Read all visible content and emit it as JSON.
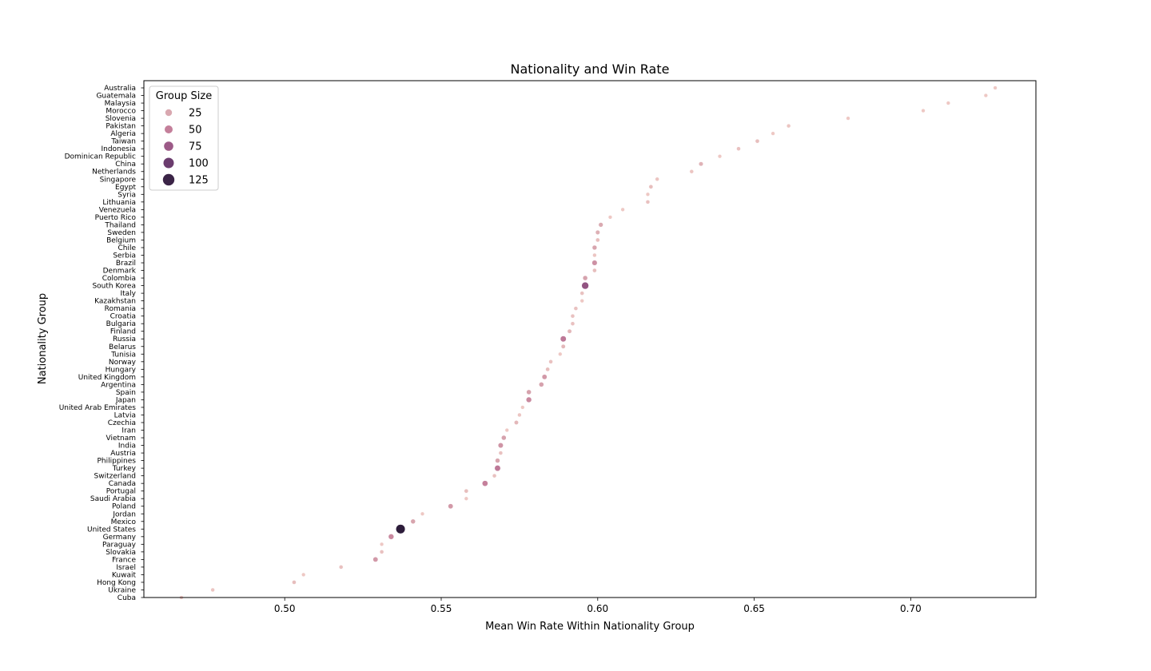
{
  "chart_data": {
    "type": "scatter",
    "title": "Nationality and Win Rate",
    "xlabel": "Mean Win Rate Within Nationality Group",
    "ylabel": "Nationality Group",
    "xlim": [
      0.455,
      0.74
    ],
    "x_ticks": [
      0.5,
      0.55,
      0.6,
      0.65,
      0.7
    ],
    "x_tick_labels": [
      "0.50",
      "0.55",
      "0.60",
      "0.65",
      "0.70"
    ],
    "grid": false,
    "legend": {
      "title": "Group Size",
      "placement": "top-left",
      "entries": [
        {
          "label": "25",
          "size": 25,
          "color": "#d9a8b0"
        },
        {
          "label": "50",
          "size": 50,
          "color": "#c47f9a"
        },
        {
          "label": "75",
          "size": 75,
          "color": "#9c5a87"
        },
        {
          "label": "100",
          "size": 100,
          "color": "#6b3c6e"
        },
        {
          "label": "125",
          "size": 125,
          "color": "#3b2447"
        }
      ]
    },
    "points": [
      {
        "name": "Australia",
        "x": 0.727,
        "size": 8
      },
      {
        "name": "Guatemala",
        "x": 0.724,
        "size": 8
      },
      {
        "name": "Malaysia",
        "x": 0.712,
        "size": 8
      },
      {
        "name": "Morocco",
        "x": 0.704,
        "size": 8
      },
      {
        "name": "Slovenia",
        "x": 0.68,
        "size": 8
      },
      {
        "name": "Pakistan",
        "x": 0.661,
        "size": 10
      },
      {
        "name": "Algeria",
        "x": 0.656,
        "size": 8
      },
      {
        "name": "Taiwan",
        "x": 0.651,
        "size": 14
      },
      {
        "name": "Indonesia",
        "x": 0.645,
        "size": 12
      },
      {
        "name": "Dominican Republic",
        "x": 0.639,
        "size": 8
      },
      {
        "name": "China",
        "x": 0.633,
        "size": 20
      },
      {
        "name": "Netherlands",
        "x": 0.63,
        "size": 10
      },
      {
        "name": "Singapore",
        "x": 0.619,
        "size": 10
      },
      {
        "name": "Egypt",
        "x": 0.617,
        "size": 14
      },
      {
        "name": "Syria",
        "x": 0.616,
        "size": 8
      },
      {
        "name": "Lithuania",
        "x": 0.616,
        "size": 12
      },
      {
        "name": "Venezuela",
        "x": 0.608,
        "size": 8
      },
      {
        "name": "Puerto Rico",
        "x": 0.604,
        "size": 8
      },
      {
        "name": "Thailand",
        "x": 0.601,
        "size": 25
      },
      {
        "name": "Sweden",
        "x": 0.6,
        "size": 22
      },
      {
        "name": "Belgium",
        "x": 0.6,
        "size": 14
      },
      {
        "name": "Chile",
        "x": 0.599,
        "size": 28
      },
      {
        "name": "Serbia",
        "x": 0.599,
        "size": 10
      },
      {
        "name": "Brazil",
        "x": 0.599,
        "size": 40
      },
      {
        "name": "Denmark",
        "x": 0.599,
        "size": 14
      },
      {
        "name": "Colombia",
        "x": 0.596,
        "size": 30
      },
      {
        "name": "South Korea",
        "x": 0.596,
        "size": 80
      },
      {
        "name": "Italy",
        "x": 0.595,
        "size": 12
      },
      {
        "name": "Kazakhstan",
        "x": 0.595,
        "size": 8
      },
      {
        "name": "Romania",
        "x": 0.593,
        "size": 12
      },
      {
        "name": "Croatia",
        "x": 0.592,
        "size": 12
      },
      {
        "name": "Bulgaria",
        "x": 0.592,
        "size": 12
      },
      {
        "name": "Finland",
        "x": 0.591,
        "size": 18
      },
      {
        "name": "Russia",
        "x": 0.589,
        "size": 55
      },
      {
        "name": "Belarus",
        "x": 0.589,
        "size": 18
      },
      {
        "name": "Tunisia",
        "x": 0.588,
        "size": 8
      },
      {
        "name": "Norway",
        "x": 0.585,
        "size": 12
      },
      {
        "name": "Hungary",
        "x": 0.584,
        "size": 14
      },
      {
        "name": "United Kingdom",
        "x": 0.583,
        "size": 35
      },
      {
        "name": "Argentina",
        "x": 0.582,
        "size": 30
      },
      {
        "name": "Spain",
        "x": 0.578,
        "size": 30
      },
      {
        "name": "Japan",
        "x": 0.578,
        "size": 45
      },
      {
        "name": "United Arab Emirates",
        "x": 0.576,
        "size": 8
      },
      {
        "name": "Latvia",
        "x": 0.575,
        "size": 10
      },
      {
        "name": "Czechia",
        "x": 0.574,
        "size": 18
      },
      {
        "name": "Iran",
        "x": 0.571,
        "size": 8
      },
      {
        "name": "Vietnam",
        "x": 0.57,
        "size": 30
      },
      {
        "name": "India",
        "x": 0.569,
        "size": 38
      },
      {
        "name": "Austria",
        "x": 0.569,
        "size": 12
      },
      {
        "name": "Philippines",
        "x": 0.568,
        "size": 28
      },
      {
        "name": "Turkey",
        "x": 0.568,
        "size": 55
      },
      {
        "name": "Switzerland",
        "x": 0.567,
        "size": 12
      },
      {
        "name": "Canada",
        "x": 0.564,
        "size": 50
      },
      {
        "name": "Portugal",
        "x": 0.558,
        "size": 14
      },
      {
        "name": "Saudi Arabia",
        "x": 0.558,
        "size": 8
      },
      {
        "name": "Poland",
        "x": 0.553,
        "size": 35
      },
      {
        "name": "Jordan",
        "x": 0.544,
        "size": 8
      },
      {
        "name": "Mexico",
        "x": 0.541,
        "size": 28
      },
      {
        "name": "United States",
        "x": 0.537,
        "size": 130
      },
      {
        "name": "Germany",
        "x": 0.534,
        "size": 45
      },
      {
        "name": "Paraguay",
        "x": 0.531,
        "size": 8
      },
      {
        "name": "Slovakia",
        "x": 0.531,
        "size": 12
      },
      {
        "name": "France",
        "x": 0.529,
        "size": 35
      },
      {
        "name": "Israel",
        "x": 0.518,
        "size": 12
      },
      {
        "name": "Kuwait",
        "x": 0.506,
        "size": 8
      },
      {
        "name": "Hong Kong",
        "x": 0.503,
        "size": 14
      },
      {
        "name": "Ukraine",
        "x": 0.477,
        "size": 10
      },
      {
        "name": "Cuba",
        "x": 0.467,
        "size": 8
      }
    ]
  }
}
